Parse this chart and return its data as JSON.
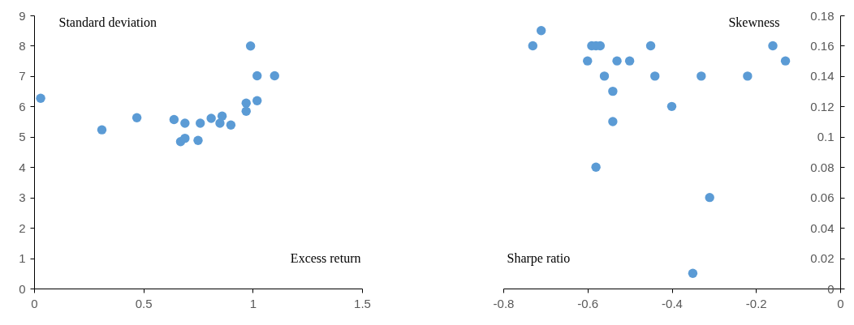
{
  "chart_data": [
    {
      "type": "scatter",
      "xlabel": "Excess return",
      "ylabel": "Standard deviation",
      "marker": "circle",
      "color": "#5b9bd5",
      "x": [
        0.03,
        0.31,
        0.47,
        0.64,
        0.69,
        0.67,
        0.69,
        0.75,
        0.76,
        0.81,
        0.86,
        0.85,
        0.9,
        0.97,
        0.97,
        0.99,
        1.02,
        1.02,
        1.1
      ],
      "values": [
        6.27,
        5.23,
        5.63,
        5.57,
        5.45,
        4.84,
        4.95,
        4.88,
        5.45,
        5.61,
        5.68,
        5.45,
        5.39,
        6.11,
        5.84,
        7.99,
        7.01,
        6.19,
        7.01
      ],
      "xlim": [
        0,
        1.5
      ],
      "xticks": [
        0,
        0.5,
        1,
        1.5
      ],
      "ylim": [
        0,
        9
      ],
      "yticks": [
        0,
        1,
        2,
        3,
        4,
        5,
        6,
        7,
        8,
        9
      ]
    },
    {
      "type": "scatter",
      "xlabel": "Sharpe ratio",
      "ylabel": "Skewness",
      "marker": "circle",
      "color": "#5b9bd5",
      "x": [
        -0.73,
        -0.71,
        -0.6,
        -0.59,
        -0.58,
        -0.57,
        -0.56,
        -0.54,
        -0.54,
        -0.53,
        -0.5,
        -0.58,
        -0.45,
        -0.44,
        -0.4,
        -0.35,
        -0.33,
        -0.31,
        -0.22,
        -0.16,
        -0.13
      ],
      "values": [
        0.16,
        0.17,
        0.15,
        0.16,
        0.16,
        0.16,
        0.14,
        0.13,
        0.11,
        0.15,
        0.15,
        0.08,
        0.16,
        0.14,
        0.12,
        0.01,
        0.14,
        0.06,
        0.14,
        0.16,
        0.15
      ],
      "xlim": [
        -0.8,
        0
      ],
      "xticks": [
        -0.8,
        -0.6,
        -0.4,
        -0.2,
        0
      ],
      "ylim": [
        0,
        0.18
      ],
      "yticks": [
        0,
        0.02,
        0.04,
        0.06,
        0.08,
        0.1,
        0.12,
        0.14,
        0.16,
        0.18
      ]
    }
  ]
}
